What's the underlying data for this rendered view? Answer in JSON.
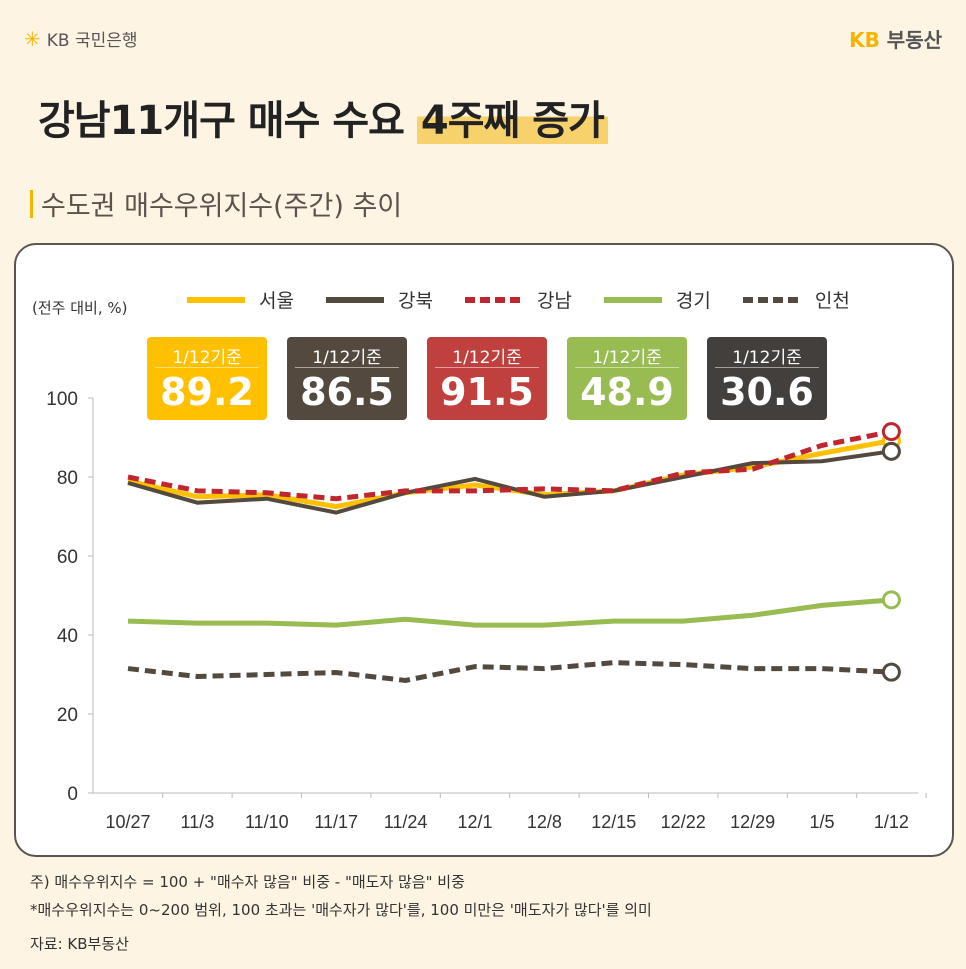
{
  "header": {
    "bank_logo": "KB 국민은행",
    "brand_kb": "KB",
    "brand_name": "부동산"
  },
  "title": {
    "main": "강남11개구 매수 수요",
    "highlight": "4주째 증가"
  },
  "subtitle": "수도권 매수우위지수(주간) 추이",
  "badges": [
    {
      "label": "1/12기준",
      "value": "89.2",
      "color": "#ffc000"
    },
    {
      "label": "1/12기준",
      "value": "86.5",
      "color": "#54493f"
    },
    {
      "label": "1/12기준",
      "value": "91.5",
      "color": "#c0403d"
    },
    {
      "label": "1/12기준",
      "value": "48.9",
      "color": "#98bb52"
    },
    {
      "label": "1/12기준",
      "value": "30.6",
      "color": "#433f3c"
    }
  ],
  "notes": [
    "주) 매수우위지수 = 100 + \"매수자 많음\" 비중 - \"매도자 많음\" 비중",
    "*매수우위지수는 0~200 범위, 100 초과는 '매수자가 많다'를, 100 미만은 '매도자가 많다'를 의미",
    "자료: KB부동산"
  ],
  "chart_data": {
    "type": "line",
    "ylabel": "(전주 대비, %)",
    "ylim": [
      0,
      100
    ],
    "yticks": [
      "0",
      "20",
      "40",
      "60",
      "80",
      "100"
    ],
    "categories": [
      "10/27",
      "11/3",
      "11/10",
      "11/17",
      "11/24",
      "12/1",
      "12/8",
      "12/15",
      "12/22",
      "12/29",
      "1/5",
      "1/12"
    ],
    "legend_position": "top",
    "series": [
      {
        "name": "서울",
        "color": "#ffc000",
        "dashed": false,
        "values": [
          79,
          75,
          75.5,
          72.5,
          76,
          78,
          75.5,
          76.5,
          80.5,
          82.5,
          86,
          89.2
        ]
      },
      {
        "name": "강북",
        "color": "#54493f",
        "dashed": false,
        "values": [
          78.5,
          73.5,
          74.5,
          71,
          76,
          79.5,
          75,
          76.5,
          80,
          83.5,
          84,
          86.5
        ]
      },
      {
        "name": "강남",
        "color": "#c0262d",
        "dashed": true,
        "values": [
          80,
          76.5,
          76,
          74.5,
          76.5,
          76.5,
          77,
          76.5,
          81,
          82,
          88,
          91.5
        ]
      },
      {
        "name": "경기",
        "color": "#98bb52",
        "dashed": false,
        "values": [
          43.5,
          43,
          43,
          42.5,
          44,
          42.5,
          42.5,
          43.5,
          43.5,
          45,
          47.5,
          48.9
        ]
      },
      {
        "name": "인천",
        "color": "#54493f",
        "dashed": true,
        "values": [
          31.5,
          29.5,
          30,
          30.5,
          28.5,
          32,
          31.5,
          33,
          32.5,
          31.5,
          31.5,
          30.6
        ]
      }
    ]
  }
}
